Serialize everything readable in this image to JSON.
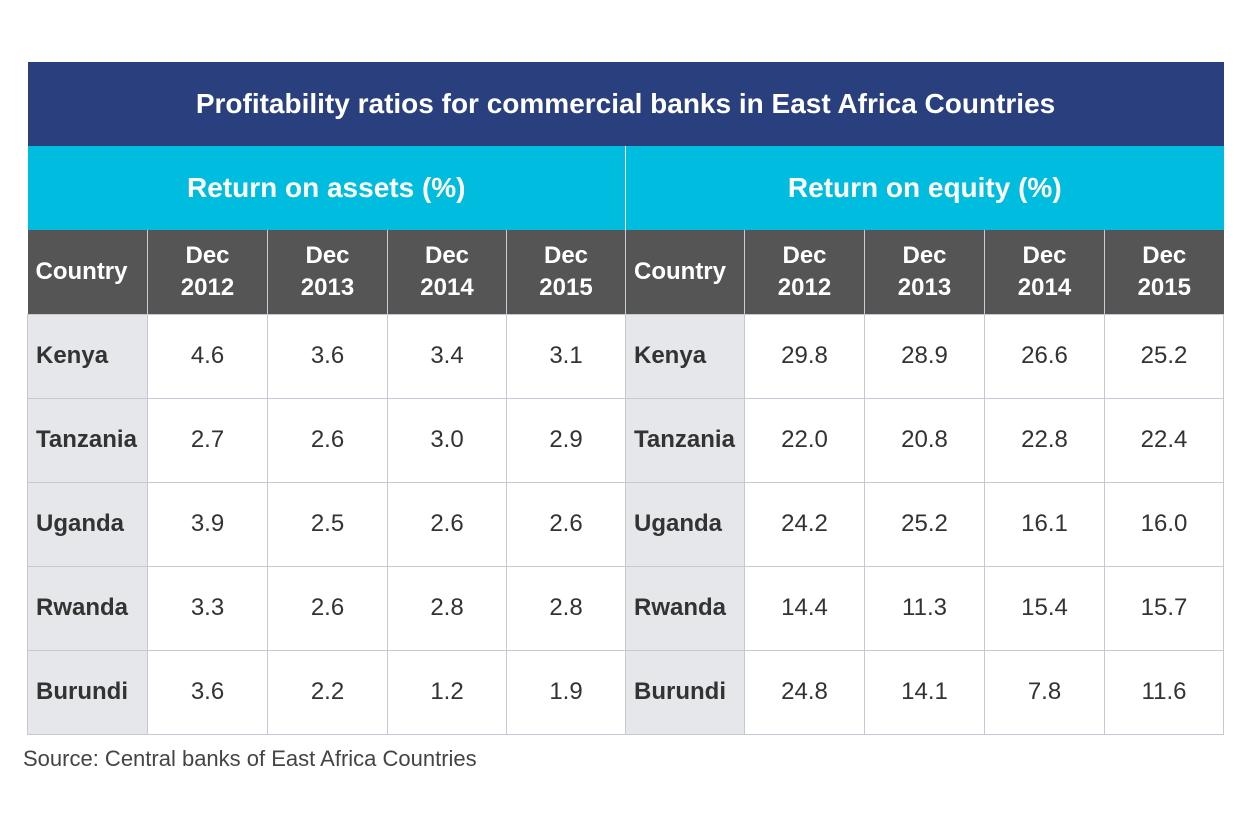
{
  "chart_data": {
    "type": "table",
    "title": "Profitability ratios for commercial banks in East Africa Countries",
    "groups": [
      {
        "name": "Return on assets (%)",
        "column_headers": [
          "Country",
          "Dec 2012",
          "Dec 2013",
          "Dec 2014",
          "Dec 2015"
        ],
        "rows": [
          {
            "country": "Kenya",
            "values": [
              "4.6",
              "3.6",
              "3.4",
              "3.1"
            ]
          },
          {
            "country": "Tanzania",
            "values": [
              "2.7",
              "2.6",
              "3.0",
              "2.9"
            ]
          },
          {
            "country": "Uganda",
            "values": [
              "3.9",
              "2.5",
              "2.6",
              "2.6"
            ]
          },
          {
            "country": "Rwanda",
            "values": [
              "3.3",
              "2.6",
              "2.8",
              "2.8"
            ]
          },
          {
            "country": "Burundi",
            "values": [
              "3.6",
              "2.2",
              "1.2",
              "1.9"
            ]
          }
        ]
      },
      {
        "name": "Return on equity (%)",
        "column_headers": [
          "Country",
          "Dec 2012",
          "Dec 2013",
          "Dec 2014",
          "Dec 2015"
        ],
        "rows": [
          {
            "country": "Kenya",
            "values": [
              "29.8",
              "28.9",
              "26.6",
              "25.2"
            ]
          },
          {
            "country": "Tanzania",
            "values": [
              "22.0",
              "20.8",
              "22.8",
              "22.4"
            ]
          },
          {
            "country": "Uganda",
            "values": [
              "24.2",
              "25.2",
              "16.1",
              "16.0"
            ]
          },
          {
            "country": "Rwanda",
            "values": [
              "14.4",
              "11.3",
              "15.4",
              "15.7"
            ]
          },
          {
            "country": "Burundi",
            "values": [
              "24.8",
              "14.1",
              "7.8",
              "11.6"
            ]
          }
        ]
      }
    ],
    "source": "Source: Central banks of East Africa Countries",
    "colors": {
      "title_bg": "#2a3f7e",
      "group_bg": "#00bde0",
      "header_bg": "#555555",
      "country_bg": "#e6e7ea"
    }
  }
}
